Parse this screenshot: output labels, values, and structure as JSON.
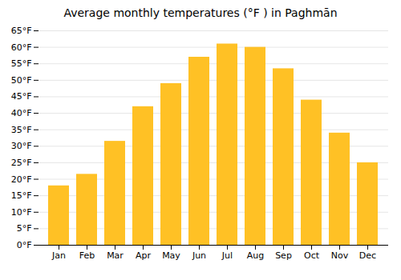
{
  "chart_data": {
    "type": "bar",
    "title": "Average monthly temperatures (°F ) in Paghmān",
    "categories": [
      "Jan",
      "Feb",
      "Mar",
      "Apr",
      "May",
      "Jun",
      "Jul",
      "Aug",
      "Sep",
      "Oct",
      "Nov",
      "Dec"
    ],
    "values": [
      18,
      21.5,
      31.5,
      42,
      49,
      57,
      61,
      60,
      53.5,
      44,
      34,
      25
    ],
    "color": "#FFC125",
    "ylim": [
      0,
      65
    ],
    "yticks": [
      {
        "value": 0,
        "label": "0°F"
      },
      {
        "value": 5,
        "label": "5°F"
      },
      {
        "value": 10,
        "label": "10°F"
      },
      {
        "value": 15,
        "label": "15°F"
      },
      {
        "value": 20,
        "label": "20°F"
      },
      {
        "value": 25,
        "label": "25°F"
      },
      {
        "value": 30,
        "label": "30°F"
      },
      {
        "value": 35,
        "label": "35°F"
      },
      {
        "value": 40,
        "label": "40°F"
      },
      {
        "value": 45,
        "label": "45°F"
      },
      {
        "value": 50,
        "label": "50°F"
      },
      {
        "value": 55,
        "label": "55°F"
      },
      {
        "value": 60,
        "label": "60°F"
      },
      {
        "value": 65,
        "label": "65°F"
      }
    ],
    "grid": true
  }
}
